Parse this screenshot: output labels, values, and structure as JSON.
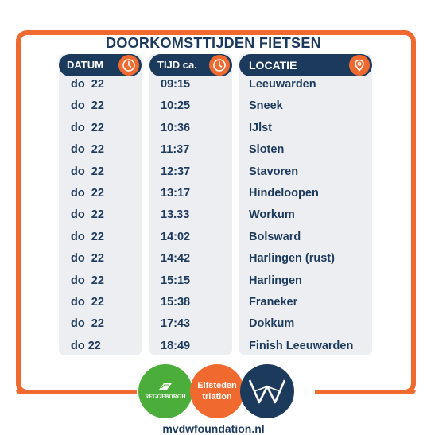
{
  "title": "DOORKOMSTTIJDEN FIETSEN",
  "headers": {
    "datum": "DATUM",
    "tijd": "TIJD ca.",
    "locatie": "LOCATIE"
  },
  "header_icons": {
    "datum": "clock-icon",
    "tijd": "clock-icon",
    "locatie": "location-pin-icon"
  },
  "rows": [
    {
      "datum": "do  22",
      "tijd": "09:15",
      "locatie": "Leeuwarden"
    },
    {
      "datum": "do  22",
      "tijd": "10:25",
      "locatie": "Sneek"
    },
    {
      "datum": "do  22",
      "tijd": "10:36",
      "locatie": "IJlst"
    },
    {
      "datum": "do  22",
      "tijd": "11:37",
      "locatie": "Sloten"
    },
    {
      "datum": "do  22",
      "tijd": "12:37",
      "locatie": "Stavoren"
    },
    {
      "datum": "do  22",
      "tijd": "13:17",
      "locatie": "Hindeloopen"
    },
    {
      "datum": "do  22",
      "tijd": "13.33",
      "locatie": "Workum"
    },
    {
      "datum": "do  22",
      "tijd": "14:02",
      "locatie": "Bolsward"
    },
    {
      "datum": "do  22",
      "tijd": "14:42",
      "locatie": "Harlingen (rust)"
    },
    {
      "datum": "do  22",
      "tijd": "15:15",
      "locatie": "Harlingen"
    },
    {
      "datum": "do  22",
      "tijd": "15:38",
      "locatie": "Franeker"
    },
    {
      "datum": "do  22",
      "tijd": "17:43",
      "locatie": "Dokkum"
    },
    {
      "datum": "do 22",
      "tijd": "18:49",
      "locatie": "Finish Leeuwarden"
    }
  ],
  "logos": {
    "regge": "REGGEBORGH",
    "elfsteden": [
      "Elfsteden",
      "triation"
    ]
  },
  "website": "mvdwfoundation.nl",
  "colors": {
    "accent": "#f06a30",
    "navy": "#1c3a5c",
    "column_bg": "#eceef2",
    "green": "#4cae3a"
  }
}
